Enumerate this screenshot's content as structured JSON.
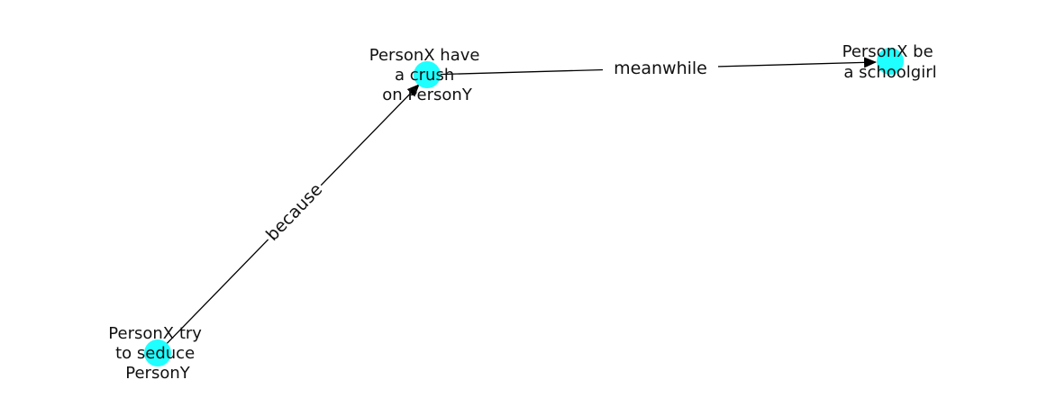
{
  "colors": {
    "node_fill": "#1fffff",
    "edge": "#000000",
    "background": "#ffffff",
    "text": "#111111"
  },
  "nodes": [
    {
      "id": "seduce",
      "label_lines": [
        "PersonX try",
        "to seduce",
        "PersonY"
      ]
    },
    {
      "id": "crush",
      "label_lines": [
        "PersonX have",
        "a crush",
        "on PersonY"
      ]
    },
    {
      "id": "schoolgirl",
      "label_lines": [
        "PersonX be",
        "a schoolgirl"
      ]
    }
  ],
  "edges": [
    {
      "from": "seduce",
      "to": "crush",
      "label": "because"
    },
    {
      "from": "crush",
      "to": "schoolgirl",
      "label": "meanwhile"
    }
  ]
}
